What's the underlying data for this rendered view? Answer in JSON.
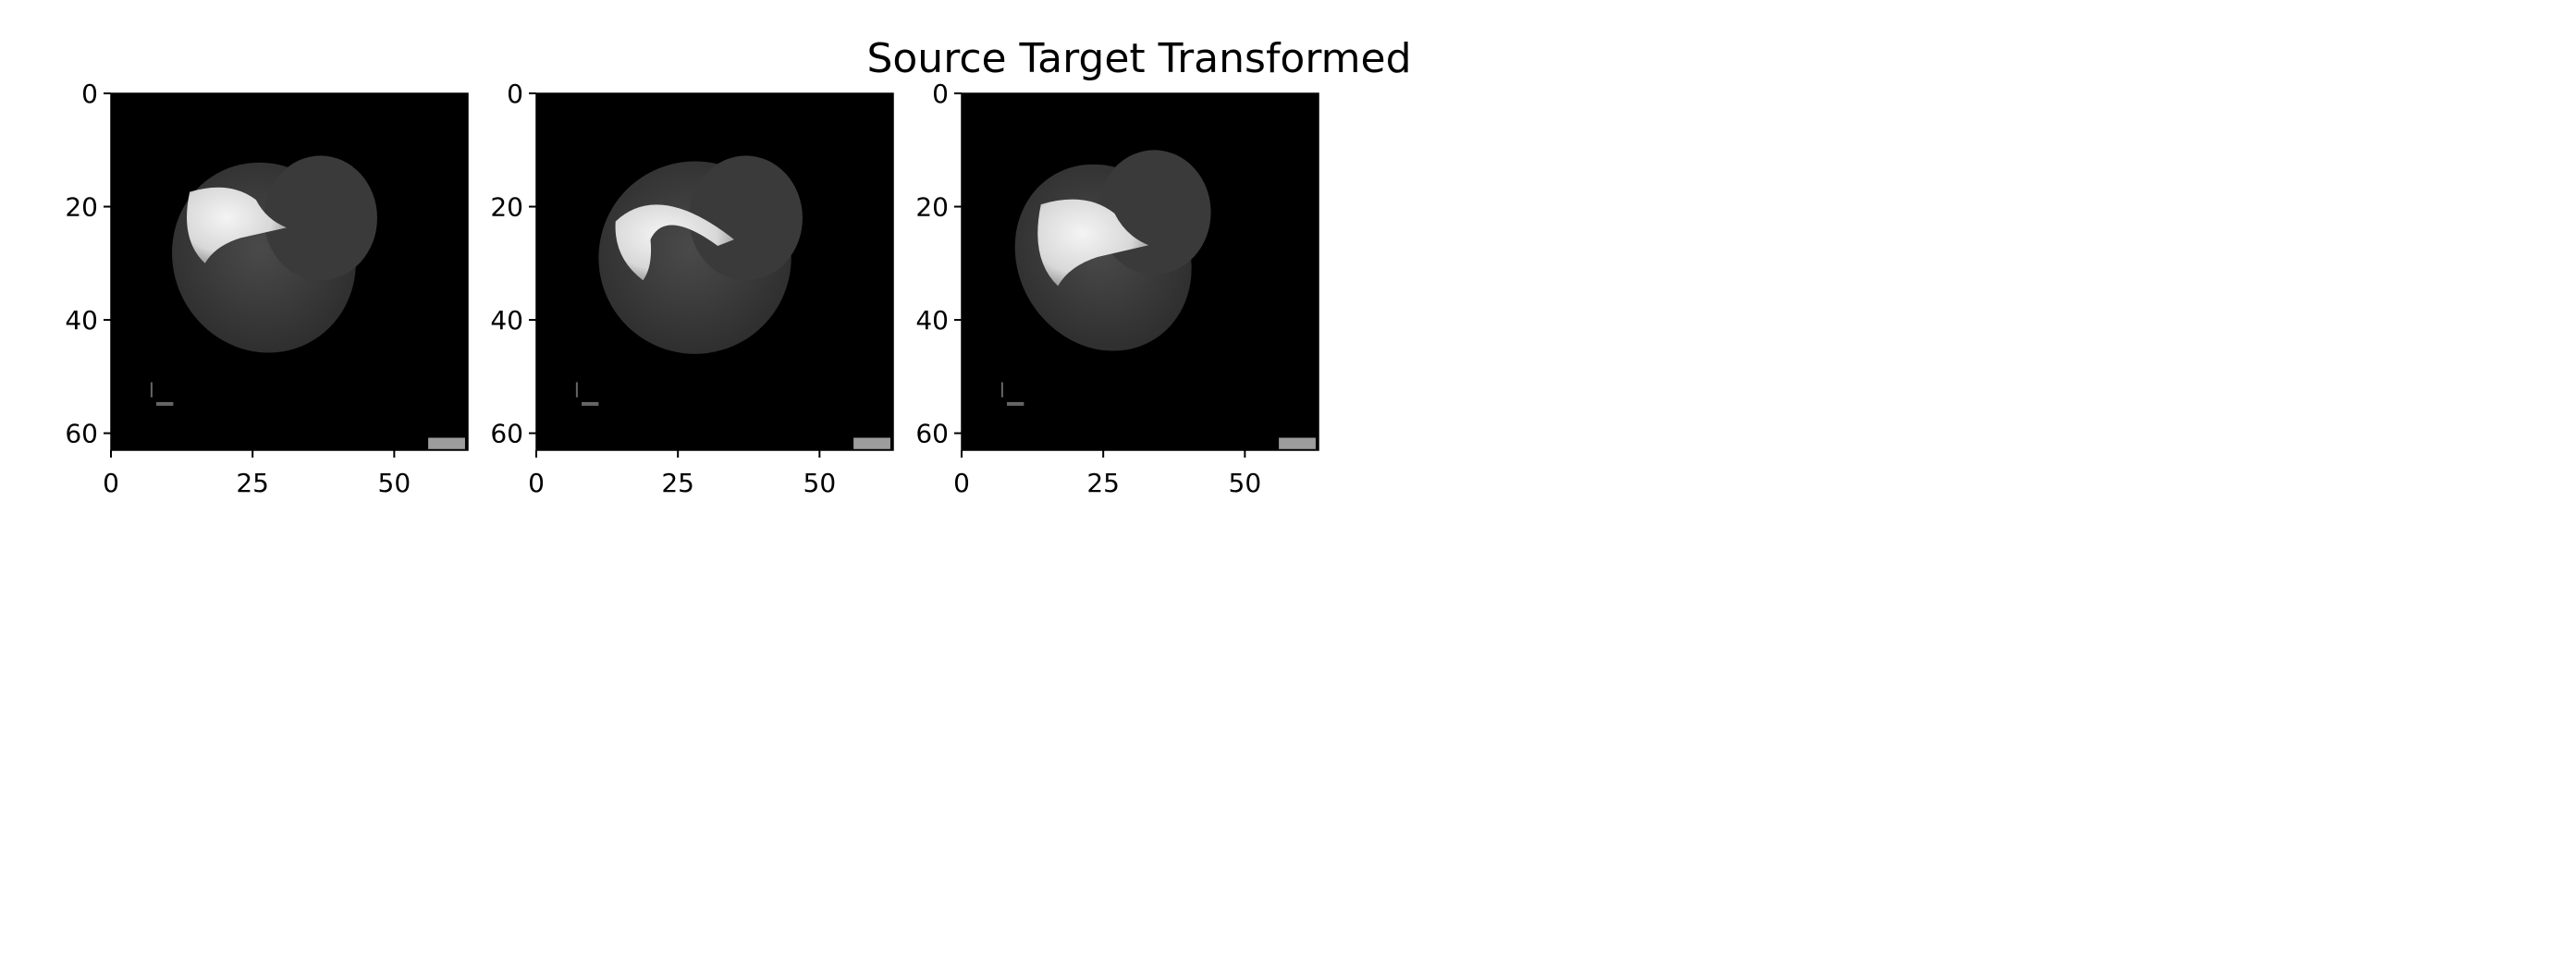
{
  "chart_data": {
    "type": "heatmap",
    "title": "Source Target Transformed",
    "colormap": "gray",
    "panels": [
      {
        "x_ticks": [
          0,
          25,
          50
        ],
        "y_ticks": [
          0,
          20,
          40,
          60
        ],
        "xlim": [
          0,
          63
        ],
        "ylim": [
          63,
          0
        ],
        "grid": false,
        "shape": {
          "center": [
            27,
            29
          ],
          "body_rx": 16,
          "body_ry": 17,
          "lobe_center": [
            37,
            22
          ],
          "lobe_rx": 10,
          "lobe_ry": 11,
          "tilt_deg": -28
        },
        "highlight": {
          "x": [
            13,
            31
          ],
          "y": [
            16,
            30
          ]
        }
      },
      {
        "x_ticks": [
          0,
          25,
          50
        ],
        "y_ticks": [
          0,
          20,
          40,
          60
        ],
        "xlim": [
          0,
          63
        ],
        "ylim": [
          63,
          0
        ],
        "grid": false,
        "shape": {
          "center": [
            28,
            29
          ],
          "body_rx": 17,
          "body_ry": 17,
          "lobe_center": [
            37,
            22
          ],
          "lobe_rx": 10,
          "lobe_ry": 11,
          "tilt_deg": -28
        },
        "highlight": {
          "x": [
            14,
            36
          ],
          "y": [
            17,
            33
          ]
        }
      },
      {
        "x_ticks": [
          0,
          25,
          50
        ],
        "y_ticks": [
          0,
          20,
          40,
          60
        ],
        "xlim": [
          0,
          63
        ],
        "ylim": [
          63,
          0
        ],
        "grid": false,
        "shape": {
          "center": [
            25,
            29
          ],
          "body_rx": 15,
          "body_ry": 17,
          "lobe_center": [
            34,
            21
          ],
          "lobe_rx": 10,
          "lobe_ry": 11,
          "tilt_deg": -32
        },
        "highlight": {
          "x": [
            13,
            33
          ],
          "y": [
            18,
            34
          ]
        }
      }
    ]
  }
}
